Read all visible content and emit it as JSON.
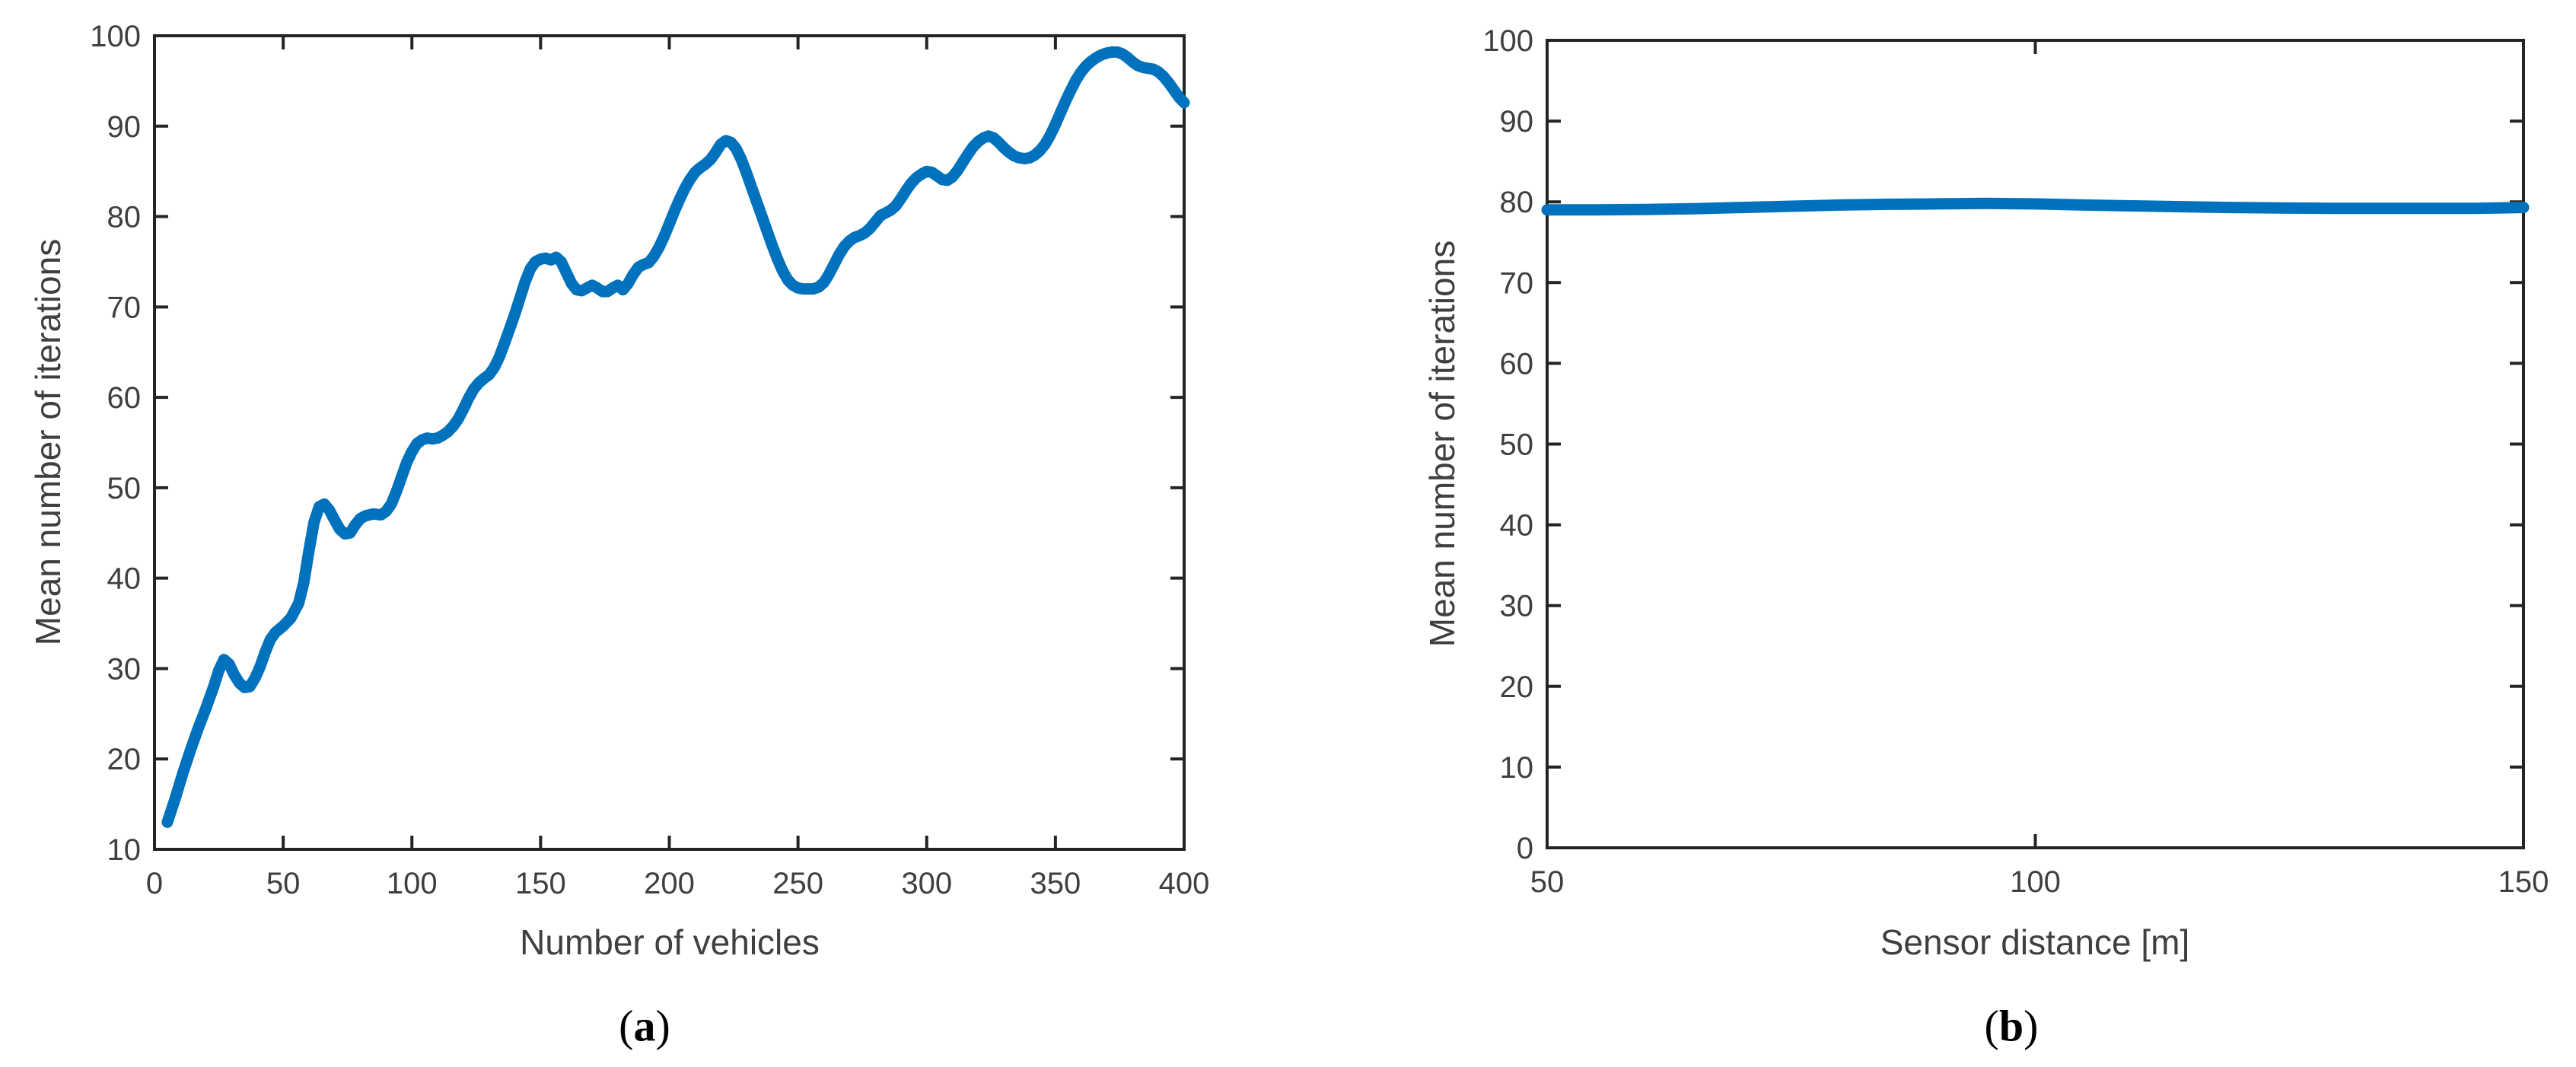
{
  "figure": {
    "background": "#ffffff",
    "axis_color": "#242424",
    "label_color": "#3f3f3f",
    "line_color": "#0072BD"
  },
  "chart_data": [
    {
      "type": "line",
      "id": "a",
      "caption_open": "(",
      "caption_letter": "a",
      "caption_close": ")",
      "xlabel": "Number of vehicles",
      "ylabel": "Mean number of iterations",
      "xlim": [
        0,
        400
      ],
      "ylim": [
        10,
        100
      ],
      "xticks": [
        0,
        50,
        100,
        150,
        200,
        250,
        300,
        350,
        400
      ],
      "yticks": [
        10,
        20,
        30,
        40,
        50,
        60,
        70,
        80,
        90,
        100
      ],
      "grid": false,
      "legend": "none",
      "x": [
        5,
        8,
        11,
        14,
        17,
        20,
        23,
        25,
        27,
        29,
        31,
        33,
        35,
        37,
        39,
        41,
        43,
        45,
        47,
        50,
        53,
        56,
        58,
        60,
        62,
        64,
        66,
        68,
        70,
        72,
        74,
        76,
        78,
        80,
        82,
        85,
        88,
        90,
        92,
        94,
        96,
        98,
        100,
        102,
        104,
        106,
        108,
        110,
        112,
        114,
        116,
        118,
        120,
        122,
        124,
        126,
        128,
        130,
        132,
        134,
        136,
        138,
        140,
        142,
        144,
        146,
        148,
        150,
        152,
        154,
        156,
        158,
        160,
        162,
        164,
        166,
        168,
        170,
        172,
        174,
        176,
        178,
        180,
        182,
        184,
        186,
        188,
        190,
        192,
        194,
        196,
        198,
        200,
        202,
        204,
        206,
        208,
        210,
        212,
        214,
        216,
        218,
        220,
        222,
        224,
        226,
        228,
        230,
        232,
        234,
        236,
        238,
        240,
        242,
        244,
        246,
        248,
        250,
        252,
        254,
        256,
        258,
        260,
        262,
        264,
        266,
        268,
        270,
        272,
        274,
        276,
        278,
        280,
        282,
        284,
        286,
        288,
        290,
        292,
        294,
        296,
        298,
        300,
        302,
        304,
        306,
        308,
        310,
        312,
        314,
        316,
        318,
        320,
        322,
        324,
        326,
        328,
        330,
        332,
        334,
        336,
        338,
        340,
        342,
        344,
        346,
        348,
        350,
        352,
        354,
        356,
        358,
        360,
        362,
        364,
        366,
        368,
        370,
        372,
        374,
        376,
        378,
        380,
        382,
        384,
        386,
        388,
        390,
        392,
        394,
        396,
        398,
        400
      ],
      "y": [
        13,
        15.6,
        18.4,
        21,
        23.4,
        25.6,
        28,
        29.8,
        31,
        30.5,
        29.3,
        28.4,
        27.9,
        28,
        28.9,
        30.2,
        31.8,
        33.2,
        34,
        34.7,
        35.6,
        37.2,
        39.5,
        43,
        46.2,
        47.9,
        48.2,
        47.5,
        46.4,
        45.4,
        44.9,
        45,
        45.9,
        46.6,
        46.9,
        47.1,
        47,
        47.4,
        48.2,
        49.6,
        51.2,
        52.8,
        54,
        54.9,
        55.3,
        55.5,
        55.4,
        55.5,
        55.8,
        56.2,
        56.8,
        57.6,
        58.7,
        59.9,
        60.9,
        61.6,
        62.1,
        62.5,
        63.3,
        64.5,
        66,
        67.6,
        69.2,
        71,
        72.8,
        74.2,
        75,
        75.3,
        75.4,
        75.2,
        75.5,
        75,
        73.8,
        72.6,
        71.9,
        71.8,
        72.1,
        72.4,
        72.1,
        71.7,
        71.7,
        72.1,
        72.4,
        71.9,
        72.6,
        73.6,
        74.4,
        74.7,
        74.9,
        75.6,
        76.6,
        77.8,
        79.2,
        80.6,
        81.9,
        83.1,
        84.1,
        84.9,
        85.4,
        85.8,
        86.3,
        87.1,
        88,
        88.4,
        88.2,
        87.5,
        86.3,
        84.8,
        83.2,
        81.6,
        80,
        78.4,
        76.8,
        75.3,
        74,
        73,
        72.4,
        72.1,
        72,
        72,
        72,
        72.2,
        72.7,
        73.6,
        74.7,
        75.8,
        76.7,
        77.3,
        77.7,
        77.9,
        78.2,
        78.7,
        79.4,
        80.1,
        80.4,
        80.7,
        81.2,
        82,
        82.9,
        83.7,
        84.3,
        84.7,
        85,
        84.9,
        84.5,
        84.1,
        84,
        84.4,
        85.1,
        86,
        86.9,
        87.7,
        88.3,
        88.7,
        88.9,
        88.7,
        88.2,
        87.6,
        87.1,
        86.7,
        86.5,
        86.4,
        86.5,
        86.8,
        87.3,
        88,
        89,
        90.2,
        91.5,
        92.8,
        94,
        95.1,
        96,
        96.7,
        97.2,
        97.6,
        97.9,
        98.1,
        98.2,
        98.2,
        98,
        97.6,
        97.1,
        96.7,
        96.5,
        96.4,
        96.3,
        96,
        95.5,
        94.8,
        94,
        93.2,
        92.6
      ]
    },
    {
      "type": "line",
      "id": "b",
      "caption_open": "(",
      "caption_letter": "b",
      "caption_close": ")",
      "xlabel": "Sensor distance [m]",
      "ylabel": "Mean number of iterations",
      "xlim": [
        50,
        150
      ],
      "ylim": [
        0,
        100
      ],
      "xticks": [
        50,
        100,
        150
      ],
      "yticks": [
        0,
        10,
        20,
        30,
        40,
        50,
        60,
        70,
        80,
        90,
        100
      ],
      "grid": false,
      "legend": "none",
      "x": [
        50,
        55,
        60,
        65,
        70,
        75,
        80,
        85,
        90,
        95,
        100,
        105,
        110,
        115,
        120,
        125,
        130,
        135,
        140,
        145,
        150
      ],
      "y": [
        79.0,
        79.0,
        79.05,
        79.15,
        79.3,
        79.45,
        79.6,
        79.7,
        79.75,
        79.8,
        79.75,
        79.6,
        79.5,
        79.4,
        79.3,
        79.25,
        79.2,
        79.2,
        79.2,
        79.2,
        79.3
      ]
    }
  ]
}
